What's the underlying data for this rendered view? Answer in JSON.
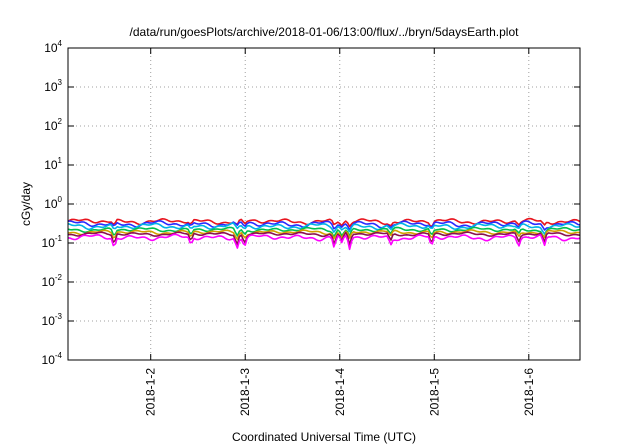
{
  "chart_data": {
    "type": "line",
    "title": "/data/run/goesPlots/archive/2018-01-06/13:00/flux/../bryn/5daysEarth.plot",
    "xlabel": "Coordinated Universal Time (UTC)",
    "ylabel": "cGy/day",
    "yscale": "log",
    "ylim": [
      0.0001,
      10000
    ],
    "y_ticks": [
      {
        "base": "10",
        "exp": "-4",
        "value": 0.0001
      },
      {
        "base": "10",
        "exp": "-3",
        "value": 0.001
      },
      {
        "base": "10",
        "exp": "-2",
        "value": 0.01
      },
      {
        "base": "10",
        "exp": "-1",
        "value": 0.1
      },
      {
        "base": "10",
        "exp": "0",
        "value": 1
      },
      {
        "base": "10",
        "exp": "1",
        "value": 10
      },
      {
        "base": "10",
        "exp": "2",
        "value": 100
      },
      {
        "base": "10",
        "exp": "3",
        "value": 1000
      },
      {
        "base": "10",
        "exp": "4",
        "value": 10000
      }
    ],
    "xlim": [
      "2018-01-01T03:00",
      "2018-01-06T13:00"
    ],
    "x_ticks": [
      "2018-1-2",
      "2018-1-3",
      "2018-1-4",
      "2018-1-5",
      "2018-1-6"
    ],
    "grid": true,
    "legend": "none",
    "series": [
      {
        "color": "#e8141e",
        "base": 0.36,
        "spread": 0.06
      },
      {
        "color": "#2a2aff",
        "base": 0.31,
        "spread": 0.06
      },
      {
        "color": "#00b4e6",
        "base": 0.27,
        "spread": 0.05
      },
      {
        "color": "#00c050",
        "base": 0.22,
        "spread": 0.03
      },
      {
        "color": "#d4a000",
        "base": 0.19,
        "spread": 0.025
      },
      {
        "color": "#8a1050",
        "base": 0.17,
        "spread": 0.02
      },
      {
        "color": "#ff00ff",
        "base": 0.14,
        "spread": 0.025
      }
    ]
  }
}
